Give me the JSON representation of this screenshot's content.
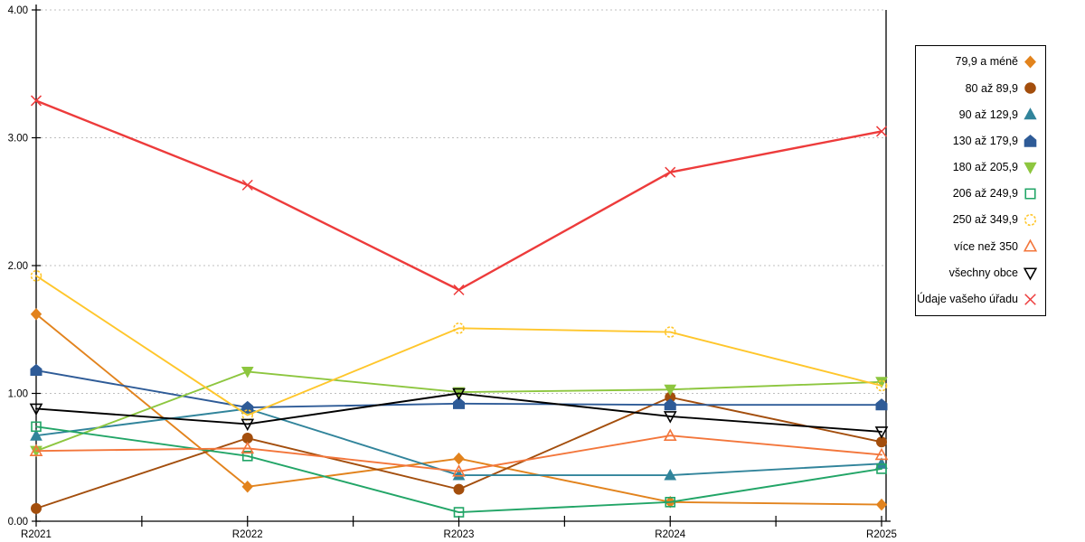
{
  "chart_data": {
    "type": "line",
    "title": "",
    "xlabel": "",
    "ylabel": "",
    "categories": [
      "R2021",
      "R2022",
      "R2023",
      "R2024",
      "R2025"
    ],
    "ylim": [
      0,
      4
    ],
    "y_tick_labels": [
      "0.00",
      "1.00",
      "2.00",
      "3.00",
      "4.00"
    ],
    "grid": "horizontal-dotted",
    "legend_position": "right",
    "series": [
      {
        "name": "79,9 a méně",
        "color": "#E2831D",
        "marker": "diamond",
        "filled": true,
        "values": [
          1.62,
          0.27,
          0.49,
          0.15,
          0.13
        ]
      },
      {
        "name": "80 až 89,9",
        "color": "#A34E0D",
        "marker": "circle",
        "filled": true,
        "values": [
          0.1,
          0.65,
          0.25,
          0.97,
          0.62
        ]
      },
      {
        "name": "90 až 129,9",
        "color": "#31849B",
        "marker": "triangle-up",
        "filled": true,
        "values": [
          0.67,
          0.88,
          0.36,
          0.36,
          0.45
        ]
      },
      {
        "name": "130 až 179,9",
        "color": "#2E5B97",
        "marker": "pentagon",
        "filled": true,
        "values": [
          1.18,
          0.89,
          0.92,
          0.91,
          0.91
        ]
      },
      {
        "name": "180 až 205,9",
        "color": "#8DC63F",
        "marker": "triangle-down",
        "filled": true,
        "values": [
          0.55,
          1.17,
          1.01,
          1.03,
          1.09
        ]
      },
      {
        "name": "206 až 249,9",
        "color": "#22A567",
        "marker": "square",
        "filled": false,
        "values": [
          0.74,
          0.51,
          0.07,
          0.15,
          0.41
        ]
      },
      {
        "name": "250 až 349,9",
        "color": "#FFC62B",
        "marker": "circle-dashed",
        "filled": false,
        "values": [
          1.92,
          0.83,
          1.51,
          1.48,
          1.06
        ]
      },
      {
        "name": "více než 350",
        "color": "#F3763B",
        "marker": "triangle-up",
        "filled": false,
        "values": [
          0.55,
          0.57,
          0.39,
          0.67,
          0.52
        ]
      },
      {
        "name": "všechny obce",
        "color": "#000000",
        "marker": "triangle-down",
        "filled": false,
        "values": [
          0.88,
          0.76,
          1.0,
          0.82,
          0.7
        ]
      },
      {
        "name": "Údaje vašeho úřadu",
        "color": "#ED3B3B",
        "marker": "x",
        "filled": false,
        "values": [
          3.29,
          2.63,
          1.81,
          2.73,
          3.05
        ]
      }
    ]
  }
}
